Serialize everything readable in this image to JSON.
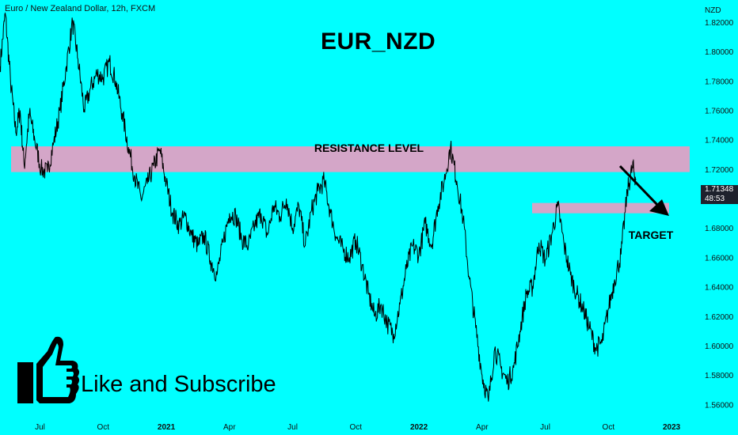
{
  "header": {
    "symbol_line": "Euro / New Zealand Dollar, 12h, FXCM"
  },
  "title": "EUR_NZD",
  "call_to_action": "Like and Subscribe",
  "price_badge": {
    "price": "1.71348",
    "countdown": "48:53"
  },
  "colors": {
    "background": "#00FFFF",
    "zone": "#D4A6C8",
    "line": "#000000",
    "badge": "#1E222D"
  },
  "icons": {
    "like": "thumbs-up-icon",
    "arrow": "down-right-arrow"
  },
  "chart_data": {
    "type": "line",
    "title": "EUR_NZD",
    "currency_label": "NZD",
    "ylim": [
      1.55,
      1.835
    ],
    "y_ticks": [
      "1.82000",
      "1.80000",
      "1.78000",
      "1.76000",
      "1.74000",
      "1.72000",
      "1.70000",
      "1.68000",
      "1.66000",
      "1.64000",
      "1.62000",
      "1.60000",
      "1.58000",
      "1.56000"
    ],
    "y_tick_values": [
      1.82,
      1.8,
      1.78,
      1.76,
      1.74,
      1.72,
      1.7,
      1.68,
      1.66,
      1.64,
      1.62,
      1.6,
      1.58,
      1.56
    ],
    "x_ticks": [
      {
        "label": "Jul",
        "t": 0.5
      },
      {
        "label": "Oct",
        "t": 3.5
      },
      {
        "label": "2021",
        "t": 6.5
      },
      {
        "label": "Apr",
        "t": 9.5
      },
      {
        "label": "Jul",
        "t": 12.5
      },
      {
        "label": "Oct",
        "t": 15.5
      },
      {
        "label": "2022",
        "t": 18.5
      },
      {
        "label": "Apr",
        "t": 21.5
      },
      {
        "label": "Jul",
        "t": 24.5
      },
      {
        "label": "Oct",
        "t": 27.5
      },
      {
        "label": "2023",
        "t": 30.5
      }
    ],
    "x_range": [
      -1.4,
      31.7
    ],
    "bold_ticks": [
      "2021",
      "2022",
      "2023"
    ],
    "series": [
      {
        "points": [
          [
            -1.4,
            1.79
          ],
          [
            -1.15,
            1.826
          ],
          [
            -0.9,
            1.78
          ],
          [
            -0.65,
            1.745
          ],
          [
            -0.45,
            1.76
          ],
          [
            -0.25,
            1.722
          ],
          [
            0,
            1.758
          ],
          [
            0.25,
            1.74
          ],
          [
            0.55,
            1.72
          ],
          [
            0.85,
            1.718
          ],
          [
            1.15,
            1.738
          ],
          [
            1.45,
            1.76
          ],
          [
            1.75,
            1.79
          ],
          [
            2.05,
            1.82
          ],
          [
            2.3,
            1.795
          ],
          [
            2.6,
            1.76
          ],
          [
            2.9,
            1.775
          ],
          [
            3.2,
            1.785
          ],
          [
            3.5,
            1.782
          ],
          [
            3.8,
            1.793
          ],
          [
            4.1,
            1.78
          ],
          [
            4.4,
            1.758
          ],
          [
            4.7,
            1.735
          ],
          [
            5.0,
            1.715
          ],
          [
            5.3,
            1.7
          ],
          [
            5.6,
            1.71
          ],
          [
            5.9,
            1.722
          ],
          [
            6.2,
            1.733
          ],
          [
            6.5,
            1.71
          ],
          [
            6.8,
            1.69
          ],
          [
            7.1,
            1.682
          ],
          [
            7.4,
            1.688
          ],
          [
            7.7,
            1.675
          ],
          [
            8.0,
            1.668
          ],
          [
            8.3,
            1.675
          ],
          [
            8.6,
            1.658
          ],
          [
            8.9,
            1.648
          ],
          [
            9.2,
            1.67
          ],
          [
            9.5,
            1.69
          ],
          [
            9.8,
            1.688
          ],
          [
            10.1,
            1.672
          ],
          [
            10.4,
            1.668
          ],
          [
            10.7,
            1.682
          ],
          [
            11.0,
            1.69
          ],
          [
            11.3,
            1.675
          ],
          [
            11.6,
            1.695
          ],
          [
            11.9,
            1.688
          ],
          [
            12.2,
            1.7
          ],
          [
            12.5,
            1.68
          ],
          [
            12.8,
            1.695
          ],
          [
            13.1,
            1.668
          ],
          [
            13.4,
            1.692
          ],
          [
            13.7,
            1.705
          ],
          [
            14.0,
            1.712
          ],
          [
            14.3,
            1.69
          ],
          [
            14.6,
            1.673
          ],
          [
            14.9,
            1.665
          ],
          [
            15.2,
            1.66
          ],
          [
            15.5,
            1.672
          ],
          [
            15.8,
            1.655
          ],
          [
            16.1,
            1.635
          ],
          [
            16.4,
            1.62
          ],
          [
            16.7,
            1.628
          ],
          [
            17.0,
            1.615
          ],
          [
            17.3,
            1.608
          ],
          [
            17.6,
            1.628
          ],
          [
            17.9,
            1.652
          ],
          [
            18.2,
            1.668
          ],
          [
            18.5,
            1.662
          ],
          [
            18.8,
            1.683
          ],
          [
            19.1,
            1.668
          ],
          [
            19.4,
            1.695
          ],
          [
            19.7,
            1.712
          ],
          [
            20.0,
            1.735
          ],
          [
            20.3,
            1.712
          ],
          [
            20.6,
            1.686
          ],
          [
            20.9,
            1.645
          ],
          [
            21.2,
            1.612
          ],
          [
            21.5,
            1.58
          ],
          [
            21.8,
            1.562
          ],
          [
            22.1,
            1.598
          ],
          [
            22.4,
            1.585
          ],
          [
            22.7,
            1.575
          ],
          [
            23.0,
            1.585
          ],
          [
            23.3,
            1.61
          ],
          [
            23.6,
            1.635
          ],
          [
            23.9,
            1.64
          ],
          [
            24.2,
            1.67
          ],
          [
            24.5,
            1.658
          ],
          [
            24.8,
            1.675
          ],
          [
            25.1,
            1.695
          ],
          [
            25.4,
            1.668
          ],
          [
            25.7,
            1.648
          ],
          [
            26.0,
            1.635
          ],
          [
            26.3,
            1.625
          ],
          [
            26.6,
            1.612
          ],
          [
            26.9,
            1.598
          ],
          [
            27.2,
            1.602
          ],
          [
            27.5,
            1.625
          ],
          [
            27.8,
            1.645
          ],
          [
            28.1,
            1.662
          ],
          [
            28.4,
            1.705
          ],
          [
            28.65,
            1.722
          ],
          [
            28.8,
            1.7135
          ]
        ]
      }
    ],
    "annotations": [
      {
        "text": "RESISTANCE LEVEL",
        "kind": "zone",
        "y_top": 1.7355,
        "y_bottom": 1.718
      },
      {
        "text": "TARGET",
        "kind": "zone",
        "y_top": 1.697,
        "y_bottom": 1.69
      }
    ]
  }
}
